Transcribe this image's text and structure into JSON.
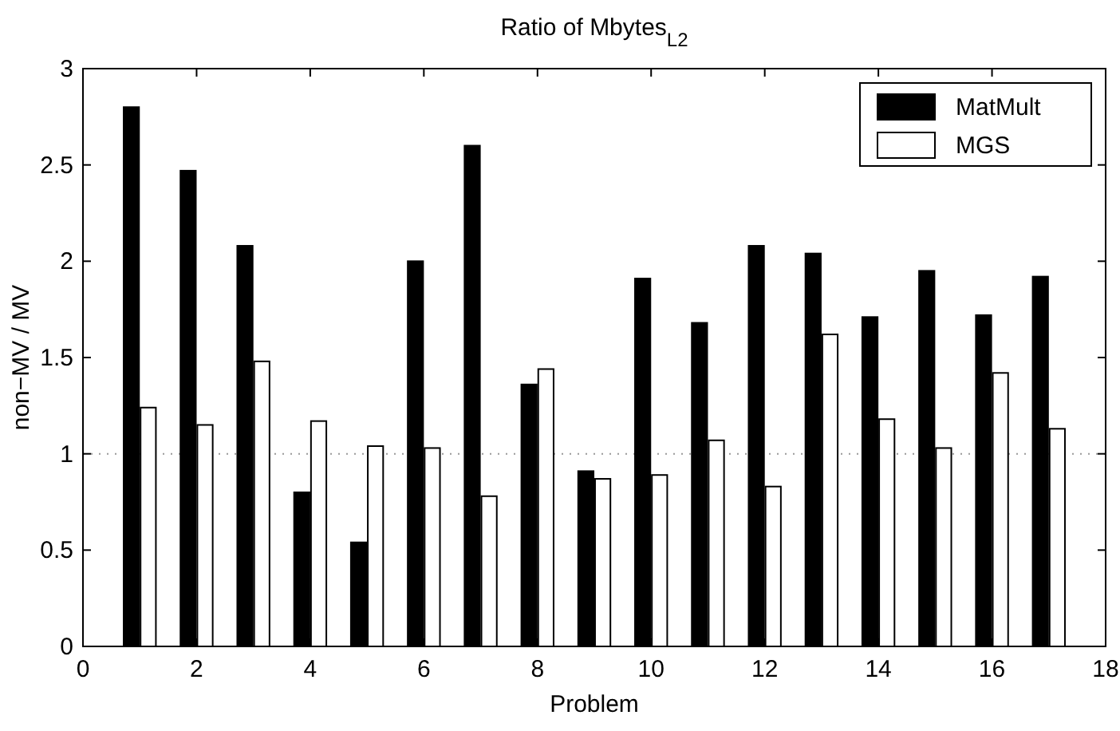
{
  "chart_data": {
    "type": "bar",
    "title": "Ratio of Mbytes$_{L2}$",
    "xlabel": "Problem",
    "ylabel": "non−MV / MV",
    "x": [
      1,
      2,
      3,
      4,
      5,
      6,
      7,
      8,
      9,
      10,
      11,
      12,
      13,
      14,
      15,
      16,
      17
    ],
    "series": [
      {
        "name": "MatMult",
        "color": "#000000",
        "values": [
          2.8,
          2.47,
          2.08,
          0.8,
          0.54,
          2.0,
          2.6,
          1.36,
          0.91,
          1.91,
          1.68,
          2.08,
          2.04,
          1.71,
          1.95,
          1.72,
          1.92
        ]
      },
      {
        "name": "MGS",
        "color": "#ffffff",
        "values": [
          1.24,
          1.15,
          1.48,
          1.17,
          1.04,
          1.03,
          0.78,
          1.44,
          0.87,
          0.89,
          1.07,
          0.83,
          1.62,
          1.18,
          1.03,
          1.42,
          1.13
        ]
      }
    ],
    "xlim": [
      0,
      18
    ],
    "xticks": [
      0,
      2,
      4,
      6,
      8,
      10,
      12,
      14,
      16,
      18
    ],
    "ylim": [
      0,
      3
    ],
    "yticks": [
      0,
      0.5,
      1,
      1.5,
      2,
      2.5,
      3
    ],
    "ref_lines": [
      {
        "axis": "y",
        "value": 1,
        "color": "#999999",
        "line_style": "dotted"
      }
    ],
    "legend": "top right"
  }
}
